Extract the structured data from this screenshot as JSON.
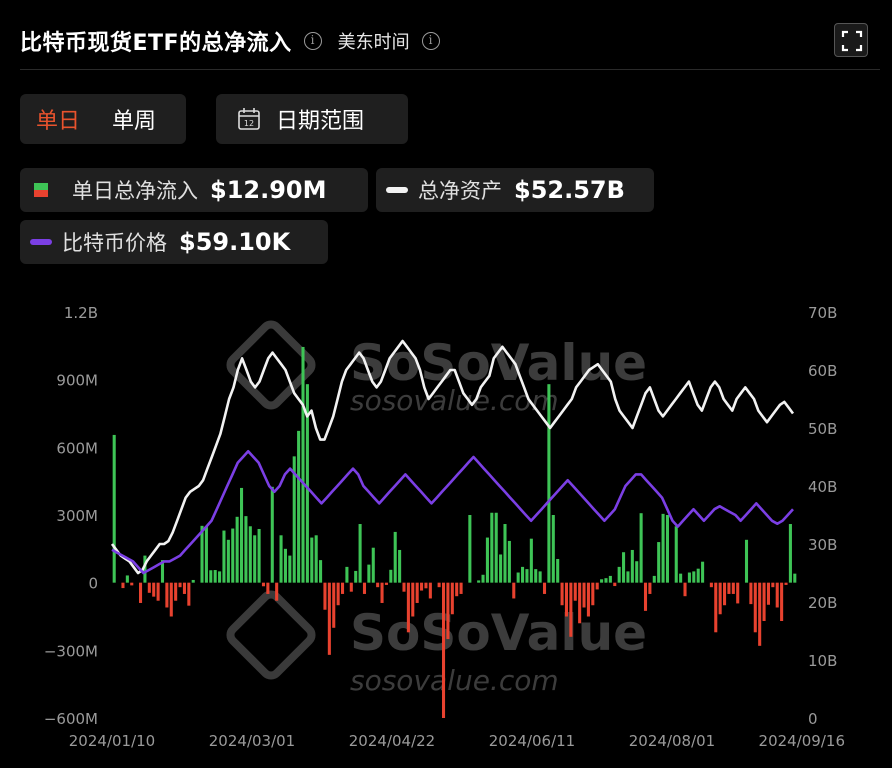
{
  "header": {
    "title": "比特币现货ETF的总净流入",
    "timezone": "美东时间",
    "info_symbol": "i"
  },
  "toolbar": {
    "tabs": [
      {
        "label": "单日",
        "active": true
      },
      {
        "label": "单周",
        "active": false
      }
    ],
    "date_range_label": "日期范围",
    "calendar_day": "12"
  },
  "legend": {
    "daily_inflow": {
      "label": "单日总净流入",
      "value": "$12.90M"
    },
    "total_assets": {
      "label": "总净资产",
      "value": "$52.57B"
    },
    "btc_price": {
      "label": "比特币价格",
      "value": "$59.10K"
    }
  },
  "watermark": {
    "brand": "SoSoValue",
    "url": "sosovalue.com"
  },
  "colors": {
    "positive": "#3ec456",
    "negative": "#e8422f",
    "assets_line": "#f2f2f2",
    "price_line": "#7b3fe4",
    "accent": "#e8532d"
  },
  "chart_data": {
    "type": "bar",
    "x_ticks": [
      "2024/01/10",
      "2024/03/01",
      "2024/04/22",
      "2024/06/11",
      "2024/08/01",
      "2024/09/16"
    ],
    "left_axis": {
      "ticks": [
        "1.2B",
        "900M",
        "600M",
        "300M",
        "0",
        "−300M",
        "−600M"
      ],
      "range": [
        -600,
        1200
      ],
      "unit": "M"
    },
    "right_axis": {
      "ticks": [
        "70B",
        "60B",
        "50B",
        "40B",
        "30B",
        "20B",
        "10B",
        "0"
      ],
      "range": [
        0,
        70
      ],
      "unit": "B"
    },
    "series": [
      {
        "name": "单日总净流入",
        "kind": "bar",
        "values": [
          655,
          0,
          -24,
          32,
          -12,
          0,
          -90,
          120,
          -45,
          -62,
          -80,
          100,
          -110,
          -150,
          -80,
          -20,
          -50,
          -102,
          12,
          0,
          252,
          250,
          55,
          56,
          50,
          231,
          190,
          240,
          292,
          420,
          295,
          250,
          210,
          238,
          -16,
          -50,
          425,
          -80,
          210,
          150,
          120,
          560,
          673,
          1045,
          880,
          200,
          210,
          100,
          -120,
          -320,
          -200,
          -100,
          -50,
          70,
          -40,
          52,
          260,
          -50,
          80,
          155,
          -20,
          -90,
          -10,
          57,
          225,
          145,
          -40,
          -220,
          -150,
          -90,
          -35,
          -25,
          -70,
          0,
          -20,
          -600,
          -250,
          -140,
          -60,
          -50,
          0,
          300,
          0,
          10,
          35,
          200,
          310,
          310,
          125,
          260,
          185,
          -70,
          45,
          70,
          60,
          195,
          60,
          50,
          -50,
          880,
          300,
          105,
          -100,
          -150,
          -240,
          -80,
          -180,
          -110,
          -150,
          -100,
          -30,
          15,
          20,
          30,
          -15,
          70,
          135,
          50,
          145,
          95,
          308,
          -125,
          -50,
          30,
          180,
          305,
          300,
          0,
          250,
          40,
          -60,
          45,
          50,
          62,
          93,
          0,
          -20,
          -220,
          -140,
          -100,
          -50,
          -50,
          -92,
          0,
          190,
          -95,
          -220,
          -280,
          -170,
          -98,
          -20,
          -110,
          -170,
          -10,
          260,
          40
        ],
        "color_rule": "green when positive, red when negative"
      },
      {
        "name": "总净资产",
        "kind": "line",
        "axis": "right",
        "values": [
          30,
          29,
          28,
          27.5,
          27,
          26,
          25,
          25.5,
          27,
          28,
          29,
          30,
          30,
          30.5,
          32,
          34,
          36,
          38,
          39,
          39.5,
          40,
          41,
          43,
          45,
          47,
          49,
          52,
          55,
          57,
          60,
          62,
          60,
          58,
          57,
          58,
          60,
          62,
          63,
          62,
          61,
          60,
          58,
          56,
          55,
          54,
          52,
          53,
          50,
          48,
          48,
          50,
          52,
          55,
          58,
          60,
          61,
          62,
          63,
          62,
          60,
          58,
          57,
          58,
          60,
          62,
          63,
          64,
          65,
          64,
          63,
          62,
          60,
          57,
          55,
          56,
          57,
          58,
          59,
          60,
          60,
          58,
          56,
          55,
          54,
          55,
          57,
          58,
          59,
          62,
          63,
          64,
          63,
          62,
          61,
          59,
          57,
          55,
          54,
          53,
          52,
          51,
          50,
          51,
          52,
          53,
          54,
          55,
          57,
          58,
          59,
          60,
          60.5,
          61,
          60,
          59,
          58,
          55,
          53,
          52,
          51,
          50,
          52,
          54,
          56,
          57,
          55,
          53,
          52,
          53,
          54,
          55,
          56,
          57,
          58,
          56,
          54,
          53,
          55,
          57,
          58,
          57,
          55,
          54,
          53,
          55,
          56,
          57,
          56,
          55,
          53,
          52,
          51,
          52,
          53,
          54,
          54.5,
          53.5,
          52.5
        ],
        "color": "#f2f2f2"
      },
      {
        "name": "比特币价格",
        "kind": "line",
        "axis": "right",
        "values": [
          29,
          28.5,
          28,
          27.5,
          27,
          26,
          25,
          25.5,
          26,
          26.5,
          27,
          27,
          27.5,
          28,
          29,
          30,
          31,
          32,
          33,
          34,
          36,
          38,
          40,
          42,
          44,
          45,
          46,
          45,
          44,
          42,
          40,
          39,
          40,
          42,
          43,
          42,
          41,
          40,
          39,
          38,
          37,
          38,
          39,
          40,
          41,
          42,
          43,
          42,
          40,
          39,
          38,
          37,
          38,
          39,
          40,
          41,
          42,
          41,
          40,
          39,
          38,
          37,
          38,
          39,
          40,
          41,
          42,
          43,
          44,
          45,
          44,
          43,
          42,
          41,
          40,
          39,
          38,
          37,
          36,
          35,
          34,
          35,
          36,
          37,
          38,
          39,
          40,
          41,
          40,
          39,
          38,
          37,
          36,
          35,
          34,
          35,
          36,
          38,
          40,
          41,
          42,
          42,
          41,
          40,
          39,
          38,
          36,
          34,
          33,
          34,
          35,
          36,
          35,
          34,
          35,
          36,
          36.5,
          36,
          35.5,
          35,
          34,
          35,
          36,
          37,
          36,
          35,
          34,
          33.5,
          34,
          35,
          36
        ],
        "color": "#7b3fe4"
      }
    ],
    "grid": false
  }
}
